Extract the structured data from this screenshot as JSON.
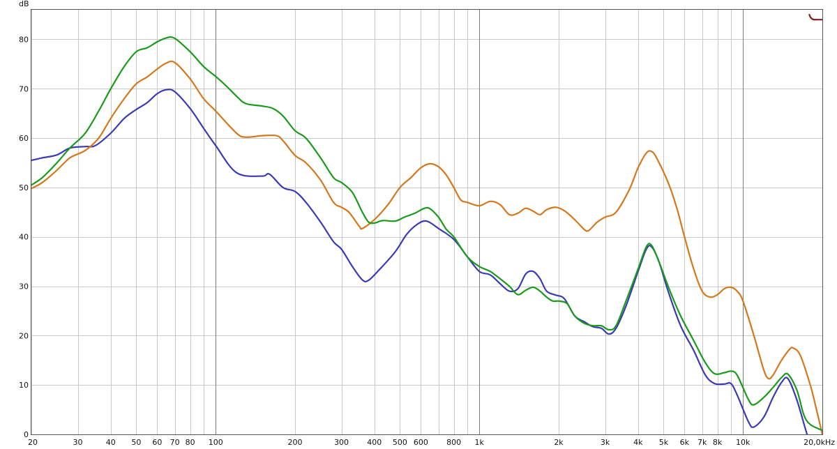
{
  "chart_data": {
    "type": "line",
    "ylabel": "dB",
    "x_scale": "log",
    "xlim": [
      20,
      20000
    ],
    "ylim": [
      0,
      86
    ],
    "grid": true,
    "legend": "none",
    "y_ticks": [
      {
        "value": 0,
        "label": "0"
      },
      {
        "value": 10,
        "label": "10"
      },
      {
        "value": 20,
        "label": "20"
      },
      {
        "value": 30,
        "label": "30"
      },
      {
        "value": 40,
        "label": "40"
      },
      {
        "value": 50,
        "label": "50"
      },
      {
        "value": 60,
        "label": "60"
      },
      {
        "value": 70,
        "label": "70"
      },
      {
        "value": 80,
        "label": "80"
      }
    ],
    "x_ticks": [
      {
        "value": 20,
        "label": "20"
      },
      {
        "value": 30,
        "label": "30"
      },
      {
        "value": 40,
        "label": "40"
      },
      {
        "value": 50,
        "label": "50"
      },
      {
        "value": 60,
        "label": "60"
      },
      {
        "value": 70,
        "label": "70"
      },
      {
        "value": 80,
        "label": "80"
      },
      {
        "value": 100,
        "label": "100"
      },
      {
        "value": 200,
        "label": "200"
      },
      {
        "value": 300,
        "label": "300"
      },
      {
        "value": 400,
        "label": "400"
      },
      {
        "value": 500,
        "label": "500"
      },
      {
        "value": 600,
        "label": "600"
      },
      {
        "value": 800,
        "label": "800"
      },
      {
        "value": 1000,
        "label": "1k"
      },
      {
        "value": 2000,
        "label": "2k"
      },
      {
        "value": 3000,
        "label": "3k"
      },
      {
        "value": 4000,
        "label": "4k"
      },
      {
        "value": 5000,
        "label": "5k"
      },
      {
        "value": 6000,
        "label": "6k"
      },
      {
        "value": 7000,
        "label": "7k"
      },
      {
        "value": 8000,
        "label": "8k"
      },
      {
        "value": 10000,
        "label": "10k"
      },
      {
        "value": 20000,
        "label": "20,0kHz"
      }
    ],
    "minor_grid_x": [
      90,
      900,
      9000
    ],
    "major_grid_x": [
      100,
      1000,
      10000
    ],
    "series": [
      {
        "color": "#3a3ab4",
        "points": [
          [
            20,
            55.5
          ],
          [
            22,
            56
          ],
          [
            25,
            56.6
          ],
          [
            28,
            58
          ],
          [
            32,
            58.3
          ],
          [
            35,
            58.5
          ],
          [
            40,
            61
          ],
          [
            45,
            64
          ],
          [
            50,
            65.8
          ],
          [
            55,
            67.2
          ],
          [
            60,
            69
          ],
          [
            65,
            69.8
          ],
          [
            70,
            69.4
          ],
          [
            80,
            66
          ],
          [
            90,
            62
          ],
          [
            100,
            58.5
          ],
          [
            120,
            53
          ],
          [
            150,
            52.3
          ],
          [
            160,
            52.7
          ],
          [
            180,
            50
          ],
          [
            200,
            49.2
          ],
          [
            220,
            47
          ],
          [
            250,
            43
          ],
          [
            280,
            39
          ],
          [
            300,
            37.5
          ],
          [
            330,
            34
          ],
          [
            360,
            31.3
          ],
          [
            380,
            31.2
          ],
          [
            420,
            33.5
          ],
          [
            480,
            37
          ],
          [
            530,
            40.5
          ],
          [
            580,
            42.5
          ],
          [
            630,
            43.2
          ],
          [
            700,
            41.7
          ],
          [
            800,
            39.5
          ],
          [
            900,
            36
          ],
          [
            1000,
            33
          ],
          [
            1100,
            32.3
          ],
          [
            1200,
            30.5
          ],
          [
            1300,
            29
          ],
          [
            1400,
            29.5
          ],
          [
            1500,
            32.5
          ],
          [
            1600,
            33
          ],
          [
            1700,
            31.5
          ],
          [
            1800,
            29
          ],
          [
            1950,
            28.2
          ],
          [
            2100,
            27.5
          ],
          [
            2300,
            24
          ],
          [
            2500,
            22.8
          ],
          [
            2700,
            21.8
          ],
          [
            2900,
            21.5
          ],
          [
            3100,
            20.3
          ],
          [
            3300,
            21.5
          ],
          [
            3600,
            26
          ],
          [
            4000,
            33
          ],
          [
            4300,
            37.5
          ],
          [
            4500,
            38
          ],
          [
            4800,
            35
          ],
          [
            5200,
            29
          ],
          [
            5800,
            22
          ],
          [
            6500,
            17
          ],
          [
            7200,
            12
          ],
          [
            7800,
            10.3
          ],
          [
            8500,
            10.2
          ],
          [
            9000,
            10.3
          ],
          [
            9500,
            8
          ],
          [
            10500,
            2.5
          ],
          [
            11000,
            1.5
          ],
          [
            12000,
            3.5
          ],
          [
            13000,
            7.5
          ],
          [
            14000,
            10.5
          ],
          [
            14800,
            11.3
          ],
          [
            16000,
            7
          ],
          [
            17500,
            0
          ],
          [
            18000,
            -1
          ]
        ]
      },
      {
        "color": "#d4781c",
        "points": [
          [
            20,
            49.8
          ],
          [
            22,
            51
          ],
          [
            25,
            53.5
          ],
          [
            28,
            56
          ],
          [
            32,
            57.5
          ],
          [
            36,
            60
          ],
          [
            40,
            64
          ],
          [
            45,
            68
          ],
          [
            50,
            71
          ],
          [
            55,
            72.4
          ],
          [
            60,
            74
          ],
          [
            65,
            75.2
          ],
          [
            70,
            75.3
          ],
          [
            80,
            72
          ],
          [
            90,
            68
          ],
          [
            100,
            65.5
          ],
          [
            120,
            61
          ],
          [
            130,
            60.2
          ],
          [
            150,
            60.5
          ],
          [
            170,
            60.5
          ],
          [
            180,
            59.5
          ],
          [
            200,
            56.5
          ],
          [
            220,
            55
          ],
          [
            250,
            51.5
          ],
          [
            280,
            47
          ],
          [
            300,
            46
          ],
          [
            320,
            45
          ],
          [
            350,
            42.2
          ],
          [
            360,
            41.7
          ],
          [
            400,
            43.5
          ],
          [
            450,
            46.5
          ],
          [
            500,
            50
          ],
          [
            550,
            52
          ],
          [
            600,
            54
          ],
          [
            650,
            54.8
          ],
          [
            700,
            54.2
          ],
          [
            750,
            52.5
          ],
          [
            800,
            50
          ],
          [
            850,
            47.5
          ],
          [
            900,
            47
          ],
          [
            1000,
            46.3
          ],
          [
            1100,
            47.2
          ],
          [
            1200,
            46.5
          ],
          [
            1300,
            44.5
          ],
          [
            1400,
            44.8
          ],
          [
            1500,
            45.8
          ],
          [
            1600,
            45.2
          ],
          [
            1700,
            44.5
          ],
          [
            1800,
            45.5
          ],
          [
            1950,
            46
          ],
          [
            2100,
            45.3
          ],
          [
            2300,
            43.5
          ],
          [
            2500,
            41.5
          ],
          [
            2600,
            41.3
          ],
          [
            2800,
            43
          ],
          [
            3000,
            44
          ],
          [
            3300,
            45
          ],
          [
            3700,
            49.5
          ],
          [
            4000,
            54
          ],
          [
            4300,
            57
          ],
          [
            4500,
            57.3
          ],
          [
            4700,
            56
          ],
          [
            5200,
            51
          ],
          [
            5600,
            46
          ],
          [
            6000,
            40
          ],
          [
            6500,
            33.5
          ],
          [
            7000,
            29
          ],
          [
            7500,
            27.8
          ],
          [
            8000,
            28.3
          ],
          [
            8500,
            29.5
          ],
          [
            9000,
            29.8
          ],
          [
            9500,
            29
          ],
          [
            10000,
            27
          ],
          [
            11000,
            20
          ],
          [
            12000,
            13
          ],
          [
            12500,
            11.3
          ],
          [
            13000,
            12
          ],
          [
            14000,
            15
          ],
          [
            15000,
            17.2
          ],
          [
            15500,
            17.5
          ],
          [
            16500,
            16
          ],
          [
            18000,
            10
          ],
          [
            19000,
            5
          ],
          [
            20000,
            0
          ]
        ]
      },
      {
        "color": "#1a9a1a",
        "points": [
          [
            20,
            50.5
          ],
          [
            22,
            52
          ],
          [
            25,
            55
          ],
          [
            28,
            58
          ],
          [
            32,
            61
          ],
          [
            36,
            65.5
          ],
          [
            40,
            70
          ],
          [
            45,
            74.5
          ],
          [
            50,
            77.5
          ],
          [
            55,
            78.3
          ],
          [
            60,
            79.5
          ],
          [
            65,
            80.3
          ],
          [
            70,
            80.2
          ],
          [
            80,
            77.5
          ],
          [
            90,
            74.5
          ],
          [
            100,
            72.5
          ],
          [
            110,
            70.5
          ],
          [
            120,
            68.5
          ],
          [
            130,
            67
          ],
          [
            150,
            66.5
          ],
          [
            165,
            66
          ],
          [
            180,
            64.5
          ],
          [
            200,
            61.5
          ],
          [
            220,
            60
          ],
          [
            250,
            56
          ],
          [
            280,
            52
          ],
          [
            300,
            51
          ],
          [
            330,
            49
          ],
          [
            360,
            45
          ],
          [
            380,
            43
          ],
          [
            400,
            42.8
          ],
          [
            430,
            43.3
          ],
          [
            480,
            43.2
          ],
          [
            520,
            44
          ],
          [
            570,
            44.8
          ],
          [
            620,
            45.8
          ],
          [
            650,
            45.7
          ],
          [
            700,
            44
          ],
          [
            750,
            41.5
          ],
          [
            800,
            40
          ],
          [
            900,
            36
          ],
          [
            1000,
            34
          ],
          [
            1100,
            33
          ],
          [
            1200,
            31.5
          ],
          [
            1300,
            30
          ],
          [
            1400,
            28.3
          ],
          [
            1500,
            29.2
          ],
          [
            1600,
            29.8
          ],
          [
            1700,
            29
          ],
          [
            1800,
            27.8
          ],
          [
            1900,
            27
          ],
          [
            2000,
            27
          ],
          [
            2150,
            26.5
          ],
          [
            2300,
            24
          ],
          [
            2500,
            22.5
          ],
          [
            2700,
            22
          ],
          [
            2900,
            22
          ],
          [
            3100,
            21.2
          ],
          [
            3300,
            22
          ],
          [
            3600,
            27
          ],
          [
            4000,
            33.5
          ],
          [
            4300,
            38
          ],
          [
            4500,
            38.3
          ],
          [
            4800,
            35
          ],
          [
            5200,
            30
          ],
          [
            5800,
            24
          ],
          [
            6500,
            19
          ],
          [
            7200,
            14.5
          ],
          [
            7800,
            12.3
          ],
          [
            8500,
            12.5
          ],
          [
            9000,
            12.8
          ],
          [
            9500,
            12
          ],
          [
            10500,
            7
          ],
          [
            11000,
            6
          ],
          [
            12000,
            7.5
          ],
          [
            13000,
            9.5
          ],
          [
            14000,
            11.5
          ],
          [
            14800,
            12.2
          ],
          [
            16000,
            9
          ],
          [
            17000,
            4
          ],
          [
            18000,
            2
          ],
          [
            20000,
            0.8
          ]
        ]
      }
    ],
    "marker": {
      "color": "#8b1a1a",
      "x": 18500,
      "y": 84
    }
  }
}
